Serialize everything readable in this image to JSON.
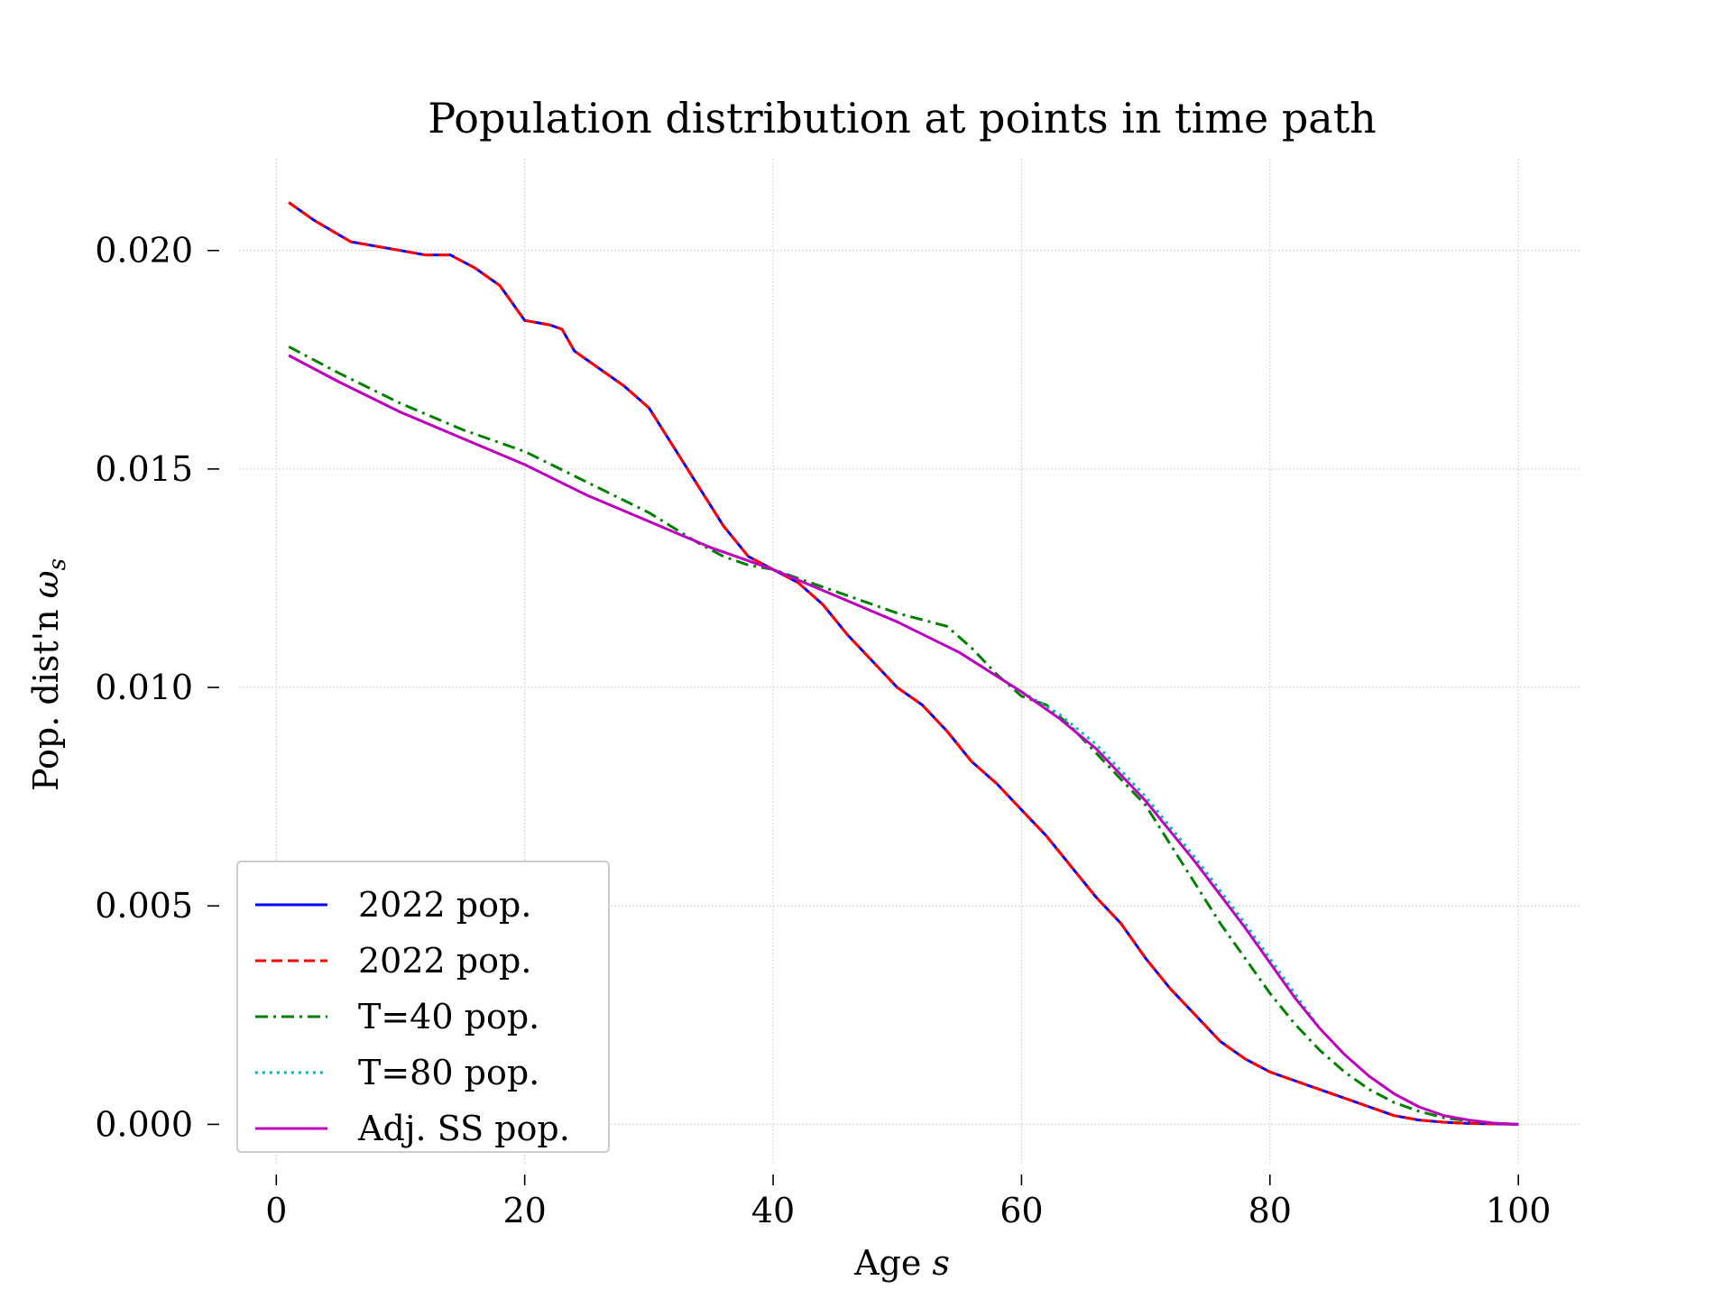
{
  "chart_data": {
    "type": "line",
    "title": "Population distribution at points in time path",
    "xlabel_text": "Age ",
    "xlabel_var": "s",
    "ylabel_text": "Pop. dist'n ",
    "ylabel_var": "ω",
    "ylabel_sub": "s",
    "xlim": [
      -3,
      105
    ],
    "ylim": [
      -0.0009,
      0.0221
    ],
    "xticks": [
      0,
      20,
      40,
      60,
      80,
      100
    ],
    "xtick_labels": [
      "0",
      "20",
      "40",
      "60",
      "80",
      "100"
    ],
    "yticks": [
      0.0,
      0.005,
      0.01,
      0.015,
      0.02
    ],
    "ytick_labels": [
      "0.000",
      "0.005",
      "0.010",
      "0.015",
      "0.020"
    ],
    "grid": true,
    "legend_position": "lower-left",
    "series": [
      {
        "name": "2022 pop.",
        "color": "#0000ff",
        "style": "solid",
        "x": [
          1,
          3,
          6,
          8,
          10,
          12,
          14,
          16,
          18,
          20,
          22,
          23,
          24,
          26,
          28,
          30,
          32,
          34,
          36,
          38,
          40,
          42,
          44,
          46,
          48,
          50,
          52,
          54,
          56,
          58,
          60,
          62,
          64,
          66,
          68,
          70,
          72,
          74,
          76,
          78,
          80,
          82,
          84,
          86,
          88,
          90,
          92,
          94,
          96,
          98,
          100
        ],
        "y": [
          0.0211,
          0.0207,
          0.0202,
          0.0201,
          0.02,
          0.0199,
          0.0199,
          0.0196,
          0.0192,
          0.0184,
          0.0183,
          0.0182,
          0.0177,
          0.0173,
          0.0169,
          0.0164,
          0.0155,
          0.0146,
          0.0137,
          0.013,
          0.0127,
          0.0124,
          0.0119,
          0.0112,
          0.0106,
          0.01,
          0.0096,
          0.009,
          0.0083,
          0.0078,
          0.0072,
          0.0066,
          0.0059,
          0.0052,
          0.0046,
          0.0038,
          0.0031,
          0.0025,
          0.0019,
          0.0015,
          0.0012,
          0.001,
          0.0008,
          0.0006,
          0.0004,
          0.0002,
          0.0001,
          5e-05,
          2e-05,
          1e-05,
          0.0
        ]
      },
      {
        "name": "2022 pop.",
        "color": "#ff0000",
        "style": "dashed",
        "x": [
          1,
          3,
          6,
          8,
          10,
          12,
          14,
          16,
          18,
          20,
          22,
          23,
          24,
          26,
          28,
          30,
          32,
          34,
          36,
          38,
          40,
          42,
          44,
          46,
          48,
          50,
          52,
          54,
          56,
          58,
          60,
          62,
          64,
          66,
          68,
          70,
          72,
          74,
          76,
          78,
          80,
          82,
          84,
          86,
          88,
          90,
          92,
          94,
          96,
          98,
          100
        ],
        "y": [
          0.0211,
          0.0207,
          0.0202,
          0.0201,
          0.02,
          0.0199,
          0.0199,
          0.0196,
          0.0192,
          0.0184,
          0.0183,
          0.0182,
          0.0177,
          0.0173,
          0.0169,
          0.0164,
          0.0155,
          0.0146,
          0.0137,
          0.013,
          0.0127,
          0.0124,
          0.0119,
          0.0112,
          0.0106,
          0.01,
          0.0096,
          0.009,
          0.0083,
          0.0078,
          0.0072,
          0.0066,
          0.0059,
          0.0052,
          0.0046,
          0.0038,
          0.0031,
          0.0025,
          0.0019,
          0.0015,
          0.0012,
          0.001,
          0.0008,
          0.0006,
          0.0004,
          0.0002,
          0.0001,
          5e-05,
          2e-05,
          1e-05,
          0.0
        ]
      },
      {
        "name": "T=40 pop.",
        "color": "#008000",
        "style": "dashdot",
        "x": [
          1,
          5,
          10,
          15,
          20,
          25,
          30,
          34,
          36,
          38,
          40,
          44,
          48,
          50,
          54,
          56,
          58,
          60,
          62,
          64,
          66,
          68,
          70,
          72,
          74,
          76,
          78,
          80,
          82,
          84,
          86,
          88,
          90,
          92,
          94,
          96,
          98,
          100
        ],
        "y": [
          0.0178,
          0.0172,
          0.0165,
          0.0159,
          0.0154,
          0.0147,
          0.014,
          0.0133,
          0.013,
          0.0128,
          0.0127,
          0.0123,
          0.0119,
          0.0117,
          0.0114,
          0.0109,
          0.0103,
          0.0098,
          0.0096,
          0.0091,
          0.0085,
          0.0079,
          0.0073,
          0.0064,
          0.0055,
          0.0046,
          0.0038,
          0.003,
          0.0023,
          0.0017,
          0.0012,
          0.0008,
          0.0005,
          0.0003,
          0.00015,
          8e-05,
          3e-05,
          0.0
        ]
      },
      {
        "name": "T=80 pop.",
        "color": "#00bfbf",
        "style": "dotted",
        "x": [
          1,
          5,
          10,
          15,
          20,
          25,
          30,
          35,
          40,
          45,
          50,
          55,
          60,
          63,
          66,
          70,
          74,
          78,
          80,
          82,
          84,
          86,
          88,
          90,
          92,
          94,
          96,
          98,
          100
        ],
        "y": [
          0.0176,
          0.017,
          0.0163,
          0.0157,
          0.0151,
          0.0144,
          0.0138,
          0.0132,
          0.0127,
          0.0121,
          0.0115,
          0.0108,
          0.0099,
          0.0094,
          0.0087,
          0.0075,
          0.0061,
          0.0046,
          0.0038,
          0.003,
          0.0022,
          0.0016,
          0.0011,
          0.0007,
          0.0004,
          0.0002,
          0.0001,
          3e-05,
          0.0
        ]
      },
      {
        "name": "Adj. SS pop.",
        "color": "#bf00bf",
        "style": "solid",
        "x": [
          1,
          5,
          10,
          15,
          20,
          25,
          30,
          35,
          40,
          45,
          50,
          55,
          60,
          63,
          66,
          70,
          74,
          78,
          80,
          82,
          84,
          86,
          88,
          90,
          92,
          94,
          96,
          98,
          100
        ],
        "y": [
          0.0176,
          0.017,
          0.0163,
          0.0157,
          0.0151,
          0.0144,
          0.0138,
          0.0132,
          0.0127,
          0.0121,
          0.0115,
          0.0108,
          0.0099,
          0.0093,
          0.0086,
          0.0074,
          0.006,
          0.0045,
          0.0037,
          0.0029,
          0.0022,
          0.0016,
          0.0011,
          0.0007,
          0.0004,
          0.0002,
          0.0001,
          3e-05,
          0.0
        ]
      }
    ]
  }
}
